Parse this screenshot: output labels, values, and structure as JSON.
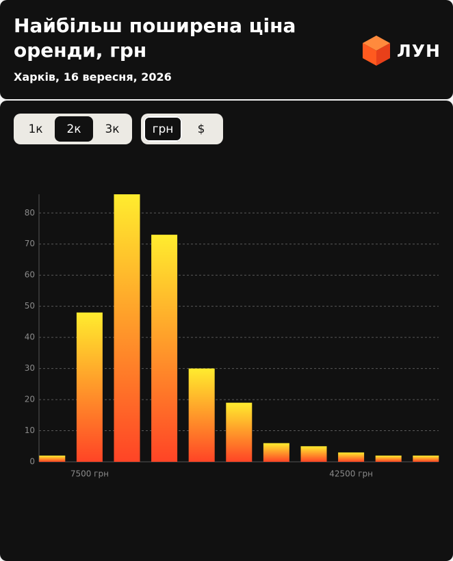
{
  "header": {
    "title": "Найбільш поширена ціна оренди, грн",
    "subtitle": "Харків, 16 вересня, 2026",
    "logo": "ЛУН"
  },
  "filters": {
    "rooms": [
      "1к",
      "2к",
      "3к"
    ],
    "currency": [
      "грн",
      "$"
    ]
  },
  "chart_data": {
    "type": "bar",
    "categories": [
      null,
      "7500 грн",
      null,
      null,
      null,
      null,
      null,
      null,
      "42500 грн",
      null,
      null
    ],
    "values": [
      2,
      48,
      86,
      73,
      30,
      19,
      6,
      5,
      3,
      2,
      2
    ],
    "colors": [
      "#ffec2e",
      "#ff4426"
    ],
    "ylim": [
      0,
      86
    ],
    "yticks": [
      0,
      10,
      20,
      30,
      40,
      50,
      60,
      70,
      80
    ],
    "grid": true
  }
}
